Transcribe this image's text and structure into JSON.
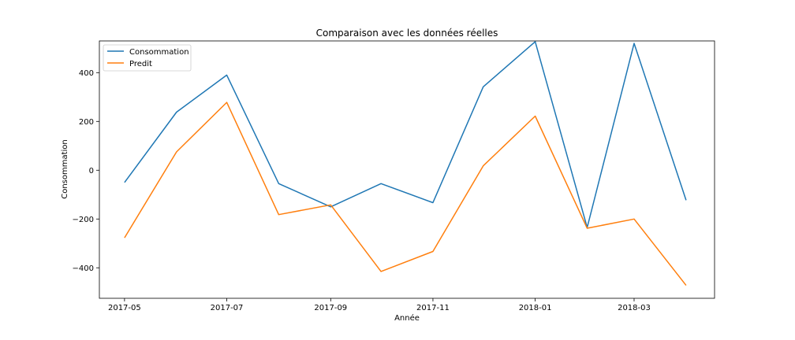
{
  "chart_data": {
    "type": "line",
    "title": "Comparaison avec les données réelles",
    "xlabel": "Année",
    "ylabel": "Consommation",
    "x": [
      "2017-05",
      "2017-06",
      "2017-07",
      "2017-08",
      "2017-09",
      "2017-10",
      "2017-11",
      "2017-12",
      "2018-01",
      "2018-02",
      "2018-03",
      "2018-04"
    ],
    "x_ticks": [
      "2017-05",
      "2017-07",
      "2017-09",
      "2017-11",
      "2018-01",
      "2018-03"
    ],
    "y_ticks": [
      -400,
      -200,
      0,
      200,
      400
    ],
    "y_tick_labels": [
      "−400",
      "−200",
      "0",
      "200",
      "400"
    ],
    "ylim": [
      -525,
      530
    ],
    "xlim": [
      "2017-04-16",
      "2018-04-18"
    ],
    "grid": false,
    "legend_position": "top-left",
    "series": [
      {
        "name": "Consommation",
        "color": "#1f77b4",
        "values": [
          -50,
          238,
          390,
          -55,
          -150,
          -55,
          -133,
          342,
          527,
          -235,
          520,
          -123
        ]
      },
      {
        "name": "Predit",
        "color": "#ff7f0e",
        "values": [
          -277,
          75,
          278,
          -182,
          -142,
          -415,
          -333,
          18,
          222,
          -238,
          -200,
          -472
        ]
      }
    ]
  }
}
